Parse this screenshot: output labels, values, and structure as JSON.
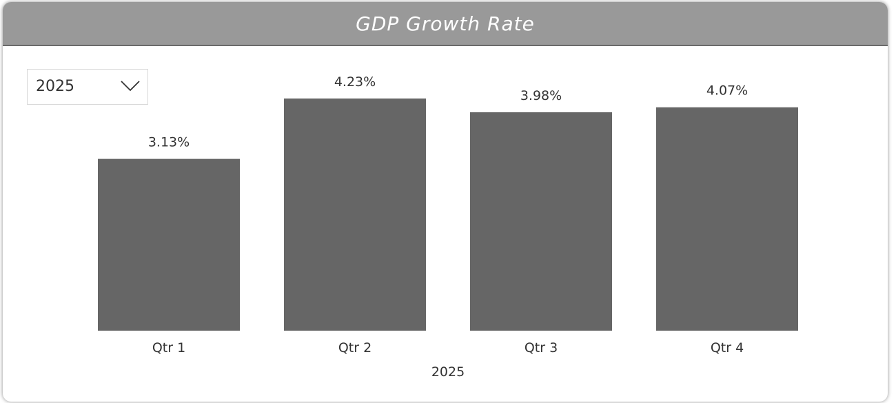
{
  "title": "GDP Growth Rate",
  "filter": {
    "selected": "2025"
  },
  "icons": {
    "dropdown": "chevron-down-icon"
  },
  "colors": {
    "title_bar": "#999999",
    "bar": "#666666",
    "text": "#333333"
  },
  "chart_data": {
    "type": "bar",
    "categories": [
      "Qtr 1",
      "Qtr 2",
      "Qtr 3",
      "Qtr 4"
    ],
    "values": [
      3.13,
      4.23,
      3.98,
      4.07
    ],
    "data_labels": [
      "3.13%",
      "4.23%",
      "3.98%",
      "4.07%"
    ],
    "unit": "%",
    "xlabel": "2025",
    "ylabel": "",
    "ylim": [
      0,
      4.23
    ],
    "grid": false,
    "legend": "none"
  }
}
